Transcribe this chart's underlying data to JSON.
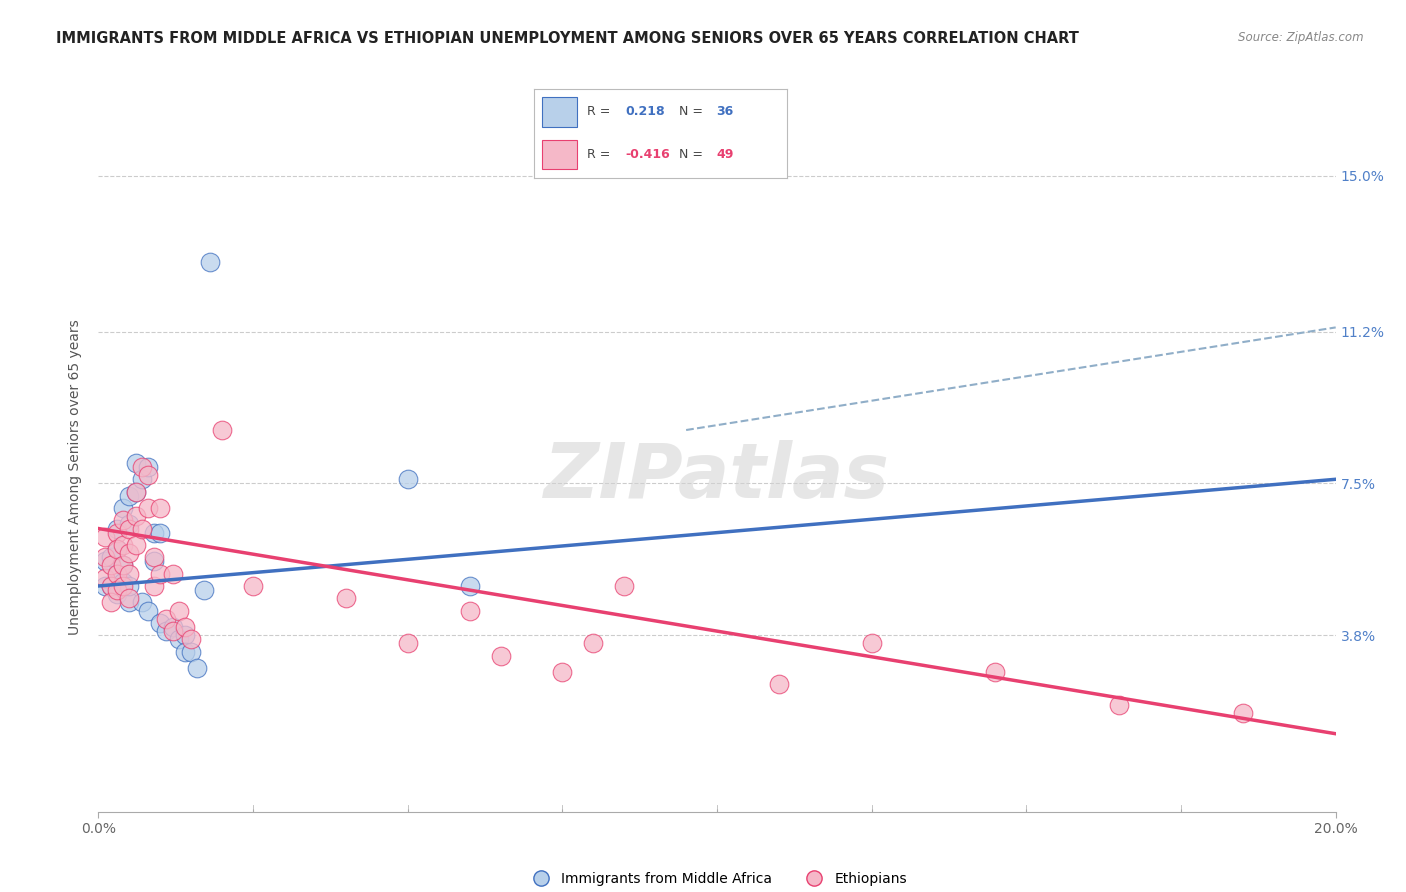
{
  "title": "IMMIGRANTS FROM MIDDLE AFRICA VS ETHIOPIAN UNEMPLOYMENT AMONG SENIORS OVER 65 YEARS CORRELATION CHART",
  "source": "Source: ZipAtlas.com",
  "ylabel": "Unemployment Among Seniors over 65 years",
  "ytick_labels": [
    "3.8%",
    "7.5%",
    "11.2%",
    "15.0%"
  ],
  "ytick_values": [
    0.038,
    0.075,
    0.112,
    0.15
  ],
  "xlim": [
    0.0,
    0.2
  ],
  "ylim": [
    -0.005,
    0.158
  ],
  "legend1_r": "0.218",
  "legend1_n": "36",
  "legend2_r": "-0.416",
  "legend2_n": "49",
  "color_blue": "#b8d0ea",
  "color_pink": "#f5b8c8",
  "line_blue": "#4070c0",
  "line_pink": "#e84070",
  "line_dashed_color": "#90aec8",
  "watermark": "ZIPatlas",
  "blue_scatter_x": [
    0.001,
    0.001,
    0.002,
    0.002,
    0.003,
    0.003,
    0.003,
    0.003,
    0.004,
    0.004,
    0.004,
    0.005,
    0.005,
    0.005,
    0.005,
    0.006,
    0.006,
    0.007,
    0.007,
    0.008,
    0.008,
    0.009,
    0.009,
    0.01,
    0.01,
    0.011,
    0.012,
    0.013,
    0.014,
    0.014,
    0.015,
    0.016,
    0.017,
    0.018,
    0.05,
    0.06
  ],
  "blue_scatter_y": [
    0.05,
    0.056,
    0.05,
    0.057,
    0.048,
    0.053,
    0.059,
    0.064,
    0.051,
    0.055,
    0.069,
    0.046,
    0.05,
    0.065,
    0.072,
    0.073,
    0.08,
    0.076,
    0.046,
    0.079,
    0.044,
    0.056,
    0.063,
    0.063,
    0.041,
    0.039,
    0.04,
    0.037,
    0.038,
    0.034,
    0.034,
    0.03,
    0.049,
    0.129,
    0.076,
    0.05
  ],
  "pink_scatter_x": [
    0.001,
    0.001,
    0.001,
    0.002,
    0.002,
    0.002,
    0.003,
    0.003,
    0.003,
    0.003,
    0.004,
    0.004,
    0.004,
    0.004,
    0.005,
    0.005,
    0.005,
    0.005,
    0.006,
    0.006,
    0.006,
    0.007,
    0.007,
    0.008,
    0.008,
    0.009,
    0.009,
    0.01,
    0.01,
    0.011,
    0.012,
    0.012,
    0.013,
    0.014,
    0.015,
    0.02,
    0.025,
    0.04,
    0.05,
    0.06,
    0.065,
    0.075,
    0.08,
    0.085,
    0.11,
    0.125,
    0.145,
    0.165,
    0.185
  ],
  "pink_scatter_y": [
    0.062,
    0.057,
    0.052,
    0.055,
    0.05,
    0.046,
    0.063,
    0.059,
    0.053,
    0.049,
    0.066,
    0.06,
    0.055,
    0.05,
    0.064,
    0.058,
    0.053,
    0.047,
    0.073,
    0.067,
    0.06,
    0.079,
    0.064,
    0.077,
    0.069,
    0.057,
    0.05,
    0.069,
    0.053,
    0.042,
    0.039,
    0.053,
    0.044,
    0.04,
    0.037,
    0.088,
    0.05,
    0.047,
    0.036,
    0.044,
    0.033,
    0.029,
    0.036,
    0.05,
    0.026,
    0.036,
    0.029,
    0.021,
    0.019
  ],
  "blue_line_x0": 0.0,
  "blue_line_x1": 0.2,
  "blue_line_y0": 0.05,
  "blue_line_y1": 0.076,
  "pink_line_x0": 0.0,
  "pink_line_x1": 0.2,
  "pink_line_y0": 0.064,
  "pink_line_y1": 0.014,
  "dashed_line_x0": 0.095,
  "dashed_line_x1": 0.2,
  "dashed_line_y0": 0.088,
  "dashed_line_y1": 0.113,
  "xtick_positions": [
    0.0,
    0.2
  ],
  "xtick_labels": [
    "0.0%",
    "20.0%"
  ],
  "xtick_minor_positions": [
    0.025,
    0.05,
    0.075,
    0.1,
    0.125,
    0.15,
    0.175
  ]
}
